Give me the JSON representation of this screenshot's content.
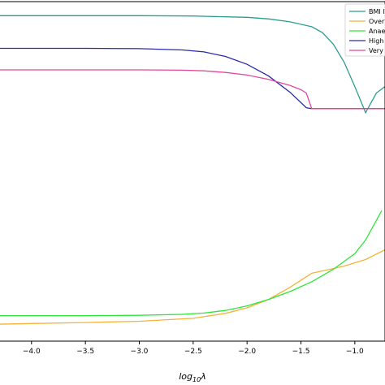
{
  "chart_data": {
    "type": "line",
    "title": "",
    "xlabel_base": "log",
    "xlabel_sub": "10",
    "xlabel_var": "λ",
    "ylabel": "",
    "xlim": [
      -4.3,
      -0.72
    ],
    "ylim": [
      -0.04,
      1.0
    ],
    "grid": false,
    "legend_position": "top-right",
    "x_ticks": [
      {
        "value": -4.0,
        "label": "−4.0"
      },
      {
        "value": -3.5,
        "label": "−3.5"
      },
      {
        "value": -3.0,
        "label": "−3.0"
      },
      {
        "value": -2.5,
        "label": "−2.5"
      },
      {
        "value": -2.0,
        "label": "−2.0"
      },
      {
        "value": -1.5,
        "label": "−1.5"
      },
      {
        "value": -1.0,
        "label": "−1.0"
      }
    ],
    "series": [
      {
        "name": "BMI l",
        "color": "#2a9d8f",
        "points": [
          [
            -4.3,
            0.957
          ],
          [
            -3.0,
            0.957
          ],
          [
            -2.5,
            0.956
          ],
          [
            -2.0,
            0.952
          ],
          [
            -1.8,
            0.947
          ],
          [
            -1.6,
            0.938
          ],
          [
            -1.4,
            0.923
          ],
          [
            -1.3,
            0.905
          ],
          [
            -1.2,
            0.87
          ],
          [
            -1.1,
            0.815
          ],
          [
            -1.0,
            0.74
          ],
          [
            -0.9,
            0.66
          ],
          [
            -0.8,
            0.72
          ],
          [
            -0.72,
            0.74
          ]
        ]
      },
      {
        "name": "Over",
        "color": "#f4b33a",
        "points": [
          [
            -4.3,
            0.012
          ],
          [
            -4.0,
            0.014
          ],
          [
            -3.5,
            0.017
          ],
          [
            -3.0,
            0.021
          ],
          [
            -2.5,
            0.03
          ],
          [
            -2.2,
            0.045
          ],
          [
            -2.0,
            0.062
          ],
          [
            -1.8,
            0.088
          ],
          [
            -1.6,
            0.125
          ],
          [
            -1.4,
            0.168
          ],
          [
            -1.3,
            0.175
          ],
          [
            -1.1,
            0.19
          ],
          [
            -0.9,
            0.21
          ],
          [
            -0.72,
            0.24
          ]
        ]
      },
      {
        "name": "Anae",
        "color": "#2ee63a",
        "points": [
          [
            -4.3,
            0.038
          ],
          [
            -3.5,
            0.038
          ],
          [
            -3.0,
            0.039
          ],
          [
            -2.6,
            0.042
          ],
          [
            -2.4,
            0.046
          ],
          [
            -2.2,
            0.054
          ],
          [
            -2.0,
            0.068
          ],
          [
            -1.8,
            0.088
          ],
          [
            -1.6,
            0.112
          ],
          [
            -1.4,
            0.142
          ],
          [
            -1.2,
            0.18
          ],
          [
            -1.0,
            0.228
          ],
          [
            -0.9,
            0.27
          ],
          [
            -0.8,
            0.33
          ],
          [
            -0.75,
            0.36
          ]
        ]
      },
      {
        "name": "High",
        "color": "#2a2aa8",
        "points": [
          [
            -4.3,
            0.857
          ],
          [
            -3.5,
            0.857
          ],
          [
            -3.0,
            0.856
          ],
          [
            -2.6,
            0.852
          ],
          [
            -2.4,
            0.846
          ],
          [
            -2.2,
            0.832
          ],
          [
            -2.0,
            0.808
          ],
          [
            -1.8,
            0.772
          ],
          [
            -1.6,
            0.722
          ],
          [
            -1.45,
            0.675
          ],
          [
            -1.4,
            0.672
          ],
          [
            -0.72,
            0.672
          ]
        ]
      },
      {
        "name": "Very",
        "color": "#e2489a",
        "points": [
          [
            -4.3,
            0.791
          ],
          [
            -3.0,
            0.791
          ],
          [
            -2.6,
            0.79
          ],
          [
            -2.4,
            0.788
          ],
          [
            -2.2,
            0.783
          ],
          [
            -2.0,
            0.775
          ],
          [
            -1.8,
            0.762
          ],
          [
            -1.6,
            0.743
          ],
          [
            -1.5,
            0.73
          ],
          [
            -1.45,
            0.72
          ],
          [
            -1.4,
            0.672
          ],
          [
            -0.72,
            0.672
          ]
        ]
      }
    ]
  }
}
